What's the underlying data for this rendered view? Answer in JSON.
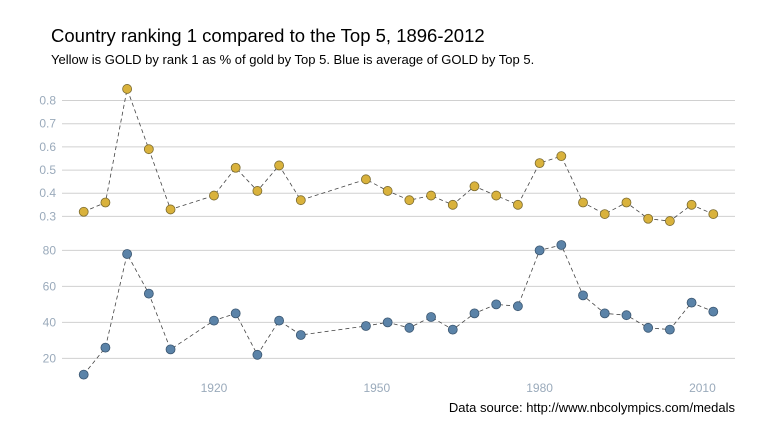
{
  "title": "Country ranking 1 compared to the Top 5, 1896-2012",
  "subtitle": "Yellow is GOLD by rank 1 as % of gold by Top 5. Blue is average of GOLD by Top 5.",
  "caption": "Data source: http://www.nbcolympics.com/medals",
  "colors": {
    "gold": "#d9b23c",
    "blue": "#5b83a8",
    "grid": "#d0d0d0",
    "axis_text": "#9aaabb"
  },
  "chart_data": [
    {
      "type": "line",
      "series": [
        {
          "color": "#d9b23c",
          "x": [
            1896,
            1900,
            1904,
            1908,
            1912,
            1920,
            1924,
            1928,
            1932,
            1936,
            1948,
            1952,
            1956,
            1960,
            1964,
            1968,
            1972,
            1976,
            1980,
            1984,
            1988,
            1992,
            1996,
            2000,
            2004,
            2008,
            2012
          ],
          "values": [
            0.32,
            0.36,
            0.85,
            0.59,
            0.33,
            0.39,
            0.51,
            0.41,
            0.52,
            0.37,
            0.46,
            0.41,
            0.37,
            0.39,
            0.35,
            0.43,
            0.39,
            0.35,
            0.53,
            0.56,
            0.36,
            0.31,
            0.36,
            0.29,
            0.28,
            0.35,
            0.31
          ]
        }
      ],
      "yticks": [
        0.3,
        0.4,
        0.5,
        0.6,
        0.7,
        0.8
      ],
      "ytick_labels": [
        "0.3",
        "0.4",
        "0.5",
        "0.6",
        "0.7",
        "0.8"
      ],
      "ylim": [
        0.25,
        0.88
      ],
      "xlim": [
        1892,
        2016
      ],
      "grid": true
    },
    {
      "type": "line",
      "series": [
        {
          "color": "#5b83a8",
          "x": [
            1896,
            1900,
            1904,
            1908,
            1912,
            1920,
            1924,
            1928,
            1932,
            1936,
            1948,
            1952,
            1956,
            1960,
            1964,
            1968,
            1972,
            1976,
            1980,
            1984,
            1988,
            1992,
            1996,
            2000,
            2004,
            2008,
            2012
          ],
          "values": [
            11,
            26,
            78,
            56,
            25,
            41,
            45,
            22,
            41,
            33,
            38,
            40,
            37,
            43,
            36,
            45,
            50,
            49,
            80,
            83,
            55,
            45,
            44,
            37,
            36,
            51,
            46
          ]
        }
      ],
      "yticks": [
        20,
        40,
        60,
        80
      ],
      "ytick_labels": [
        "20",
        "40",
        "60",
        "80"
      ],
      "ylim": [
        8,
        88
      ],
      "xlim": [
        1892,
        2016
      ],
      "xticks": [
        1920,
        1950,
        1980,
        2010
      ],
      "xtick_labels": [
        "1920",
        "1950",
        "1980",
        "2010"
      ],
      "grid": true
    }
  ]
}
